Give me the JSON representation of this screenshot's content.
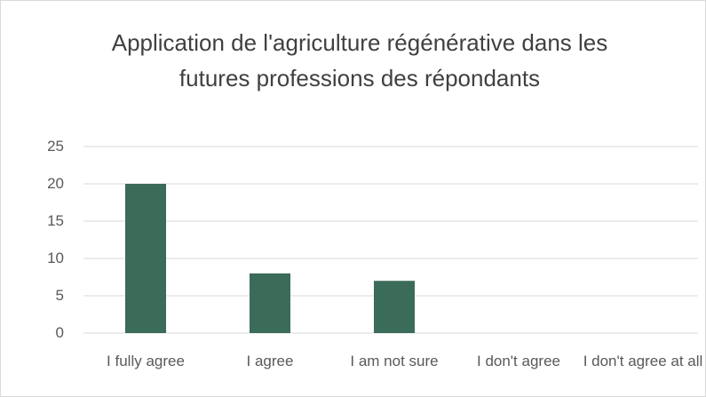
{
  "chart_data": {
    "type": "bar",
    "title": "Application de l'agriculture régénérative dans les futures professions des répondants",
    "categories": [
      "I fully agree",
      "I agree",
      "I am not sure",
      "I don't agree",
      "I don't agree at all"
    ],
    "values": [
      20,
      8,
      7,
      0,
      0
    ],
    "color": "#3b6b59",
    "ylim": [
      0,
      25
    ],
    "yticks": [
      0,
      5,
      10,
      15,
      20,
      25
    ],
    "grid": true
  }
}
